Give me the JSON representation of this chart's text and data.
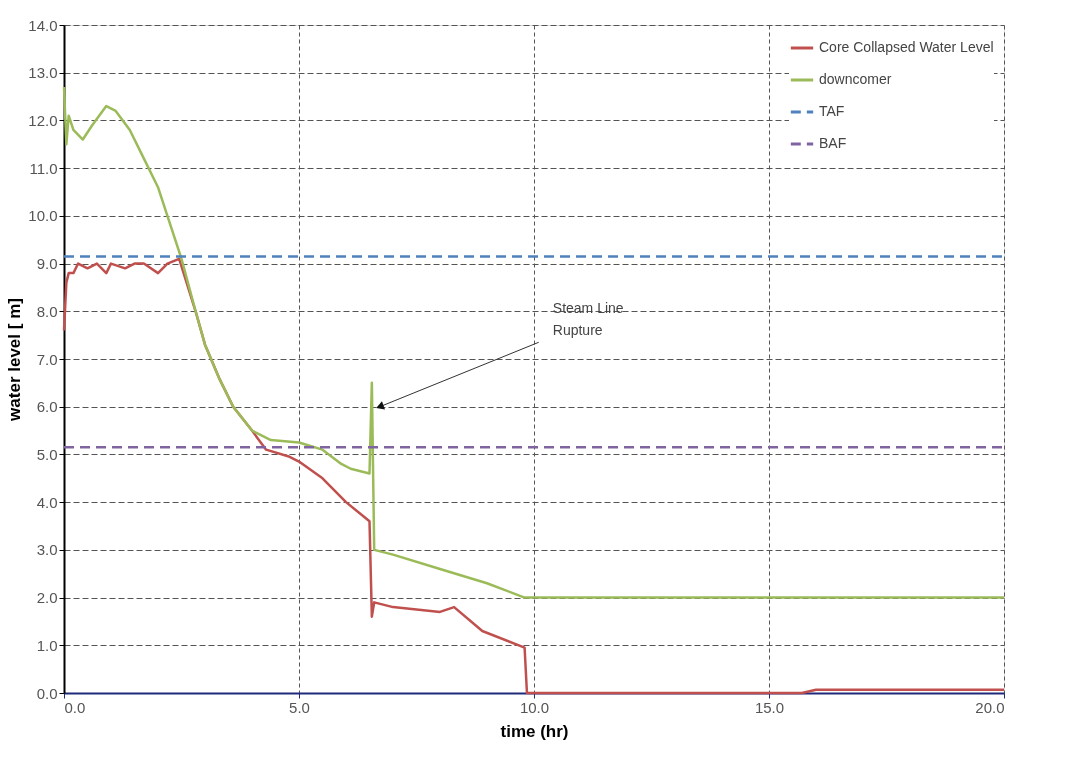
{
  "chart_data": {
    "type": "line",
    "xlabel": "time (hr)",
    "ylabel": "water level [ m]",
    "xlim": [
      0,
      20
    ],
    "ylim": [
      0,
      14
    ],
    "xticks": [
      {
        "value": 0,
        "label": "0.0"
      },
      {
        "value": 5,
        "label": "5.0"
      },
      {
        "value": 10,
        "label": "10.0"
      },
      {
        "value": 15,
        "label": "15.0"
      },
      {
        "value": 20,
        "label": "20.0"
      }
    ],
    "yticks": [
      {
        "value": 0,
        "label": "0.0"
      },
      {
        "value": 1,
        "label": "1.0"
      },
      {
        "value": 2,
        "label": "2.0"
      },
      {
        "value": 3,
        "label": "3.0"
      },
      {
        "value": 4,
        "label": "4.0"
      },
      {
        "value": 5,
        "label": "5.0"
      },
      {
        "value": 6,
        "label": "6.0"
      },
      {
        "value": 7,
        "label": "7.0"
      },
      {
        "value": 8,
        "label": "8.0"
      },
      {
        "value": 9,
        "label": "9.0"
      },
      {
        "value": 10,
        "label": "10.0"
      },
      {
        "value": 11,
        "label": "11.0"
      },
      {
        "value": 12,
        "label": "12.0"
      },
      {
        "value": 13,
        "label": "13.0"
      },
      {
        "value": 14,
        "label": "14.0"
      }
    ],
    "grid": true,
    "legend": "top right",
    "marker": "none",
    "series": [
      {
        "name": "Core Collapsed Water Level",
        "color": "#c0504d",
        "line_style": "solid",
        "x": [
          0,
          0.05,
          0.1,
          0.2,
          0.3,
          0.5,
          0.7,
          0.9,
          1.0,
          1.3,
          1.5,
          1.7,
          2.0,
          2.2,
          2.45,
          2.8,
          3.0,
          3.3,
          3.6,
          4.0,
          4.3,
          4.8,
          5.0,
          5.5,
          6.0,
          6.5,
          6.55,
          6.6,
          7.0,
          8.0,
          8.3,
          8.9,
          9.8,
          9.85,
          15.7,
          16.0,
          20
        ],
        "values": [
          7.6,
          8.6,
          8.8,
          8.8,
          9.0,
          8.9,
          9.0,
          8.8,
          9.0,
          8.9,
          9.0,
          9.0,
          8.8,
          9.0,
          9.1,
          8.0,
          7.3,
          6.6,
          6.0,
          5.5,
          5.1,
          4.95,
          4.85,
          4.5,
          4.0,
          3.6,
          1.6,
          1.9,
          1.8,
          1.7,
          1.8,
          1.3,
          0.95,
          0,
          0,
          0.07,
          0.07
        ]
      },
      {
        "name": "downcomer",
        "color": "#9bbb59",
        "line_style": "solid",
        "x": [
          0,
          0.05,
          0.1,
          0.2,
          0.4,
          0.6,
          0.9,
          1.1,
          1.4,
          1.7,
          2.0,
          2.2,
          2.5,
          2.8,
          3.0,
          3.3,
          3.6,
          4.0,
          4.4,
          5.0,
          5.5,
          5.9,
          6.1,
          6.5,
          6.55,
          6.6,
          7.0,
          8.0,
          9.0,
          9.8,
          20
        ],
        "values": [
          12.7,
          11.5,
          12.1,
          11.8,
          11.6,
          11.9,
          12.3,
          12.2,
          11.8,
          11.2,
          10.6,
          10.0,
          9.1,
          8.0,
          7.3,
          6.6,
          6.0,
          5.5,
          5.3,
          5.25,
          5.1,
          4.8,
          4.7,
          4.6,
          6.5,
          3.0,
          2.9,
          2.6,
          2.3,
          2.0,
          2.0
        ]
      },
      {
        "name": "TAF",
        "color": "#4f81bd",
        "line_style": "dashed",
        "x": [
          0,
          20
        ],
        "values": [
          9.15,
          9.15
        ]
      },
      {
        "name": "BAF",
        "color": "#8064a2",
        "line_style": "dashed",
        "x": [
          0,
          20
        ],
        "values": [
          5.15,
          5.15
        ]
      }
    ],
    "annotations": [
      {
        "text": "Steam Line Rupture",
        "x": 6.6,
        "y": 6.0
      }
    ]
  }
}
